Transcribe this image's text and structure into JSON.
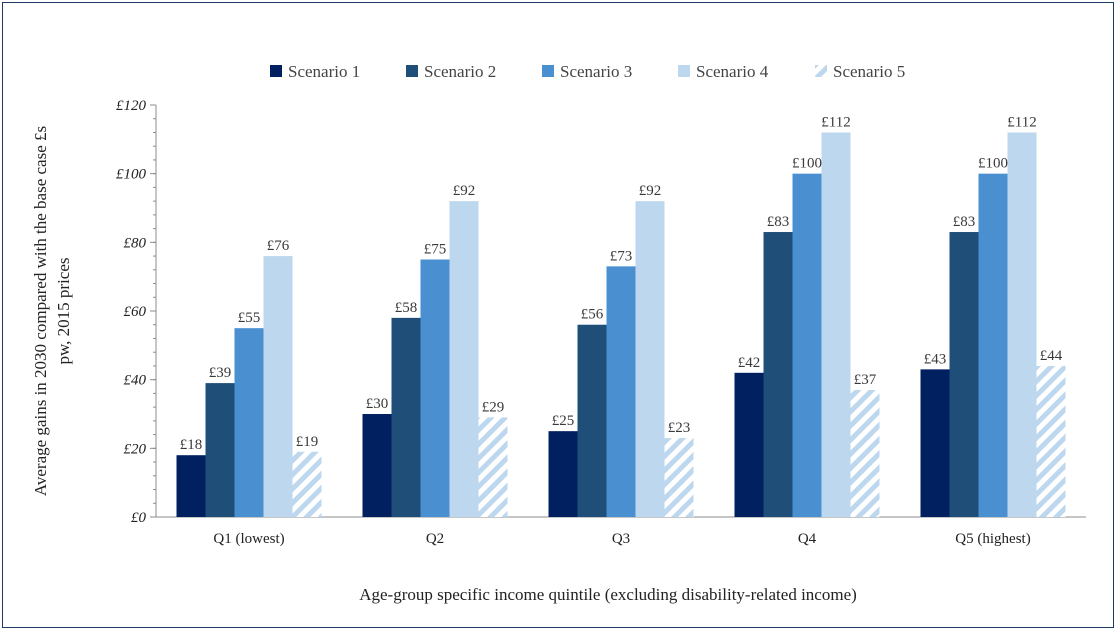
{
  "chart_data": {
    "type": "bar",
    "title": "",
    "ylabel_lines": [
      "Average gains in 2030 compared with the base case £s",
      "pw, 2015 prices"
    ],
    "xlabel": "Age-group specific income quintile (excluding disability-related income)",
    "categories": [
      "Q1 (lowest)",
      "Q2",
      "Q3",
      "Q4",
      "Q5 (highest)"
    ],
    "ylim": [
      0,
      120
    ],
    "yticks": [
      0,
      20,
      40,
      60,
      80,
      100,
      120
    ],
    "ytick_labels": [
      "£0",
      "£20",
      "£40",
      "£60",
      "£80",
      "£100",
      "£120"
    ],
    "value_prefix": "£",
    "grid": false,
    "legend_position": "top",
    "series": [
      {
        "name": "Scenario 1",
        "values": [
          18,
          30,
          25,
          42,
          43
        ],
        "color": "#002060",
        "pattern": "solid"
      },
      {
        "name": "Scenario 2",
        "values": [
          39,
          58,
          56,
          83,
          83
        ],
        "color": "#1f4e79",
        "pattern": "solid"
      },
      {
        "name": "Scenario 3",
        "values": [
          55,
          75,
          73,
          100,
          100
        ],
        "color": "#4a90d0",
        "pattern": "solid"
      },
      {
        "name": "Scenario 4",
        "values": [
          76,
          92,
          92,
          112,
          112
        ],
        "color": "#bdd7ee",
        "pattern": "solid"
      },
      {
        "name": "Scenario 5",
        "values": [
          19,
          29,
          23,
          37,
          44
        ],
        "color": "#bdd7ee",
        "pattern": "diagonal-stripes"
      }
    ]
  }
}
